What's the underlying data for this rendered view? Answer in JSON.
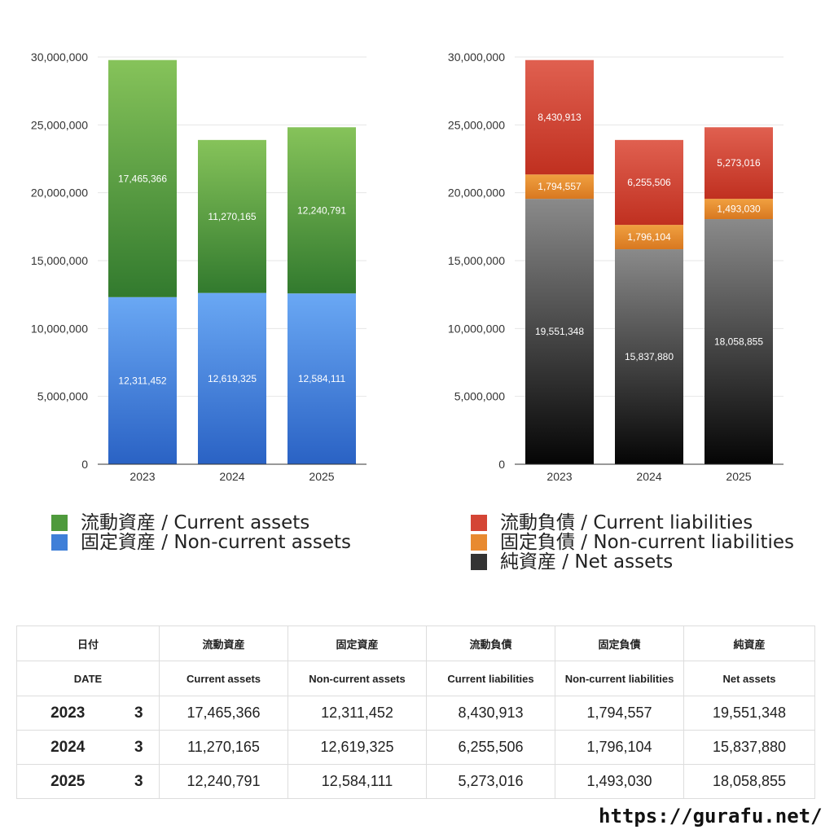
{
  "chart_data": [
    {
      "type": "bar",
      "stacked": true,
      "categories": [
        "2023",
        "2024",
        "2025"
      ],
      "ylim": [
        0,
        30000000
      ],
      "yticks": [
        "0",
        "5,000,000",
        "10,000,000",
        "15,000,000",
        "20,000,000",
        "25,000,000",
        "30,000,000"
      ],
      "grid": true,
      "series": [
        {
          "name": "固定資産 / Non-current assets",
          "values": [
            12311452,
            12619325,
            12584111
          ],
          "labels": [
            "12,311,452",
            "12,619,325",
            "12,584,111"
          ],
          "color_top": "#6aa8f4",
          "color_bottom": "#2a62c4"
        },
        {
          "name": "流動資産 / Current assets",
          "values": [
            17465366,
            11270165,
            12240791
          ],
          "labels": [
            "17,465,366",
            "11,270,165",
            "12,240,791"
          ],
          "color_top": "#86c35a",
          "color_bottom": "#327a2e"
        }
      ]
    },
    {
      "type": "bar",
      "stacked": true,
      "categories": [
        "2023",
        "2024",
        "2025"
      ],
      "ylim": [
        0,
        30000000
      ],
      "yticks": [
        "0",
        "5,000,000",
        "10,000,000",
        "15,000,000",
        "20,000,000",
        "25,000,000",
        "30,000,000"
      ],
      "grid": true,
      "series": [
        {
          "name": "純資産 / Net assets",
          "values": [
            19551348,
            15837880,
            18058855
          ],
          "labels": [
            "19,551,348",
            "15,837,880",
            "18,058,855"
          ],
          "color_top": "#8a8a8a",
          "color_bottom": "#050505"
        },
        {
          "name": "固定負債 / Non-current liabilities",
          "values": [
            1794557,
            1796104,
            1493030
          ],
          "labels": [
            "1,794,557",
            "1,796,104",
            "1,493,030"
          ],
          "color_top": "#f0a040",
          "color_bottom": "#d87820"
        },
        {
          "name": "流動負債 / Current liabilities",
          "values": [
            8430913,
            6255506,
            5273016
          ],
          "labels": [
            "8,430,913",
            "6,255,506",
            "5,273,016"
          ],
          "color_top": "#e06050",
          "color_bottom": "#c03020"
        }
      ]
    }
  ],
  "legend_left": [
    {
      "label": "流動資産 / Current assets",
      "color": "#4e9a3c"
    },
    {
      "label": "固定資産 / Non-current assets",
      "color": "#3f7fd8"
    }
  ],
  "legend_right": [
    {
      "label": "流動負債 / Current liabilities",
      "color": "#d44535"
    },
    {
      "label": "固定負債 / Non-current liabilities",
      "color": "#e88a30"
    },
    {
      "label": "純資産 / Net assets",
      "color": "#333333"
    }
  ],
  "table": {
    "header_ja": [
      "日付",
      "流動資産",
      "固定資産",
      "流動負債",
      "固定負債",
      "純資産"
    ],
    "header_en": [
      "DATE",
      "Current assets",
      "Non-current assets",
      "Current liabilities",
      "Non-current liabilities",
      "Net assets"
    ],
    "rows": [
      {
        "year": "2023",
        "month": "3",
        "cells": [
          "17,465,366",
          "12,311,452",
          "8,430,913",
          "1,794,557",
          "19,551,348"
        ]
      },
      {
        "year": "2024",
        "month": "3",
        "cells": [
          "11,270,165",
          "12,619,325",
          "6,255,506",
          "1,796,104",
          "15,837,880"
        ]
      },
      {
        "year": "2025",
        "month": "3",
        "cells": [
          "12,240,791",
          "12,584,111",
          "5,273,016",
          "1,493,030",
          "18,058,855"
        ]
      }
    ]
  },
  "site_url": "https://gurafu.net/"
}
